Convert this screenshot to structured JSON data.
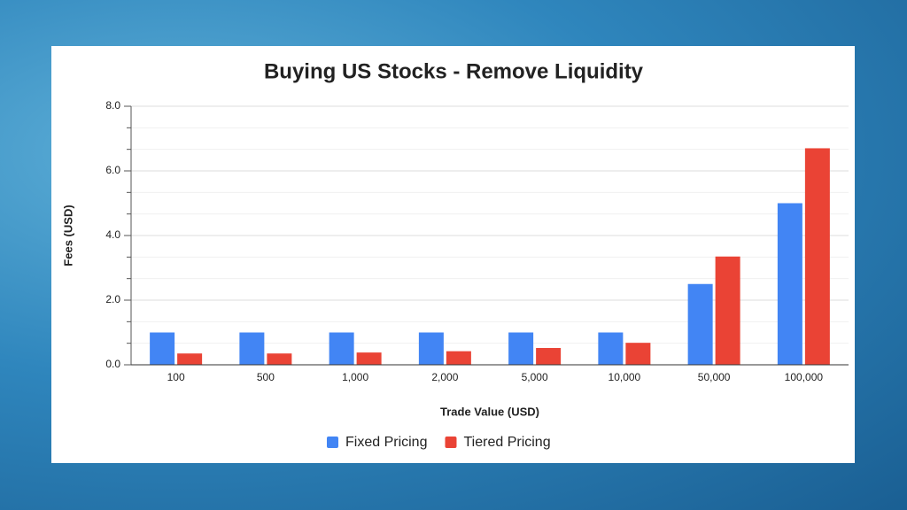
{
  "chart_data": {
    "type": "bar",
    "title": "Buying US Stocks - Remove Liquidity",
    "x_label": "Trade Value (USD)",
    "y_label": "Fees (USD)",
    "categories": [
      "100",
      "500",
      "1,000",
      "2,000",
      "5,000",
      "10,000",
      "50,000",
      "100,000"
    ],
    "series": [
      {
        "name": "Fixed Pricing",
        "color": "#4285f4",
        "values": [
          1,
          1,
          1,
          1,
          1,
          1,
          2.5,
          5
        ]
      },
      {
        "name": "Tiered Pricing",
        "color": "#ea4335",
        "values": [
          0.35,
          0.35,
          0.38,
          0.42,
          0.52,
          0.68,
          3.35,
          6.7
        ]
      }
    ],
    "ylim": [
      0,
      8
    ],
    "yticks": [
      {
        "value": 0,
        "label": "0.0"
      },
      {
        "value": 2,
        "label": "2.0"
      },
      {
        "value": 4,
        "label": "4.0"
      },
      {
        "value": 6,
        "label": "6.0"
      },
      {
        "value": 8,
        "label": "8.0"
      }
    ],
    "grid": true,
    "minor_grid_count": 2,
    "legend": "bottom"
  }
}
